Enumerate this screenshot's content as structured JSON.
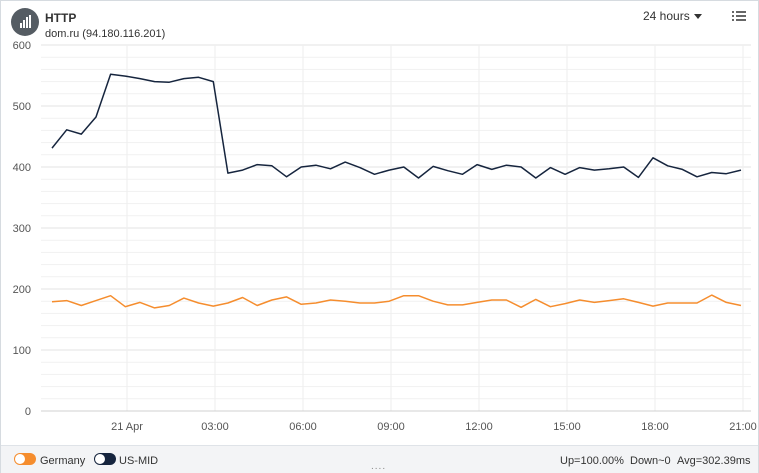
{
  "header": {
    "title": "HTTP",
    "subtitle": "dom.ru (94.180.116.201)",
    "icon": "bar-chart-icon",
    "time_range": "24 hours",
    "menu_icon": "list-menu-icon"
  },
  "legend": {
    "items": [
      {
        "label": "Germany",
        "color": "#f58d2e"
      },
      {
        "label": "US-MID",
        "color": "#16253e"
      }
    ]
  },
  "stats": {
    "up": "Up=100.00%",
    "down": "Down~0",
    "avg": "Avg=302.39ms"
  },
  "chart_data": {
    "type": "line",
    "ylim": [
      0,
      600
    ],
    "yticks": [
      "0",
      "100",
      "200",
      "300",
      "400",
      "500",
      "600"
    ],
    "xtick_labels": [
      "21 Apr",
      "03:00",
      "06:00",
      "09:00",
      "12:00",
      "15:00",
      "18:00",
      "21:00"
    ],
    "series": [
      {
        "name": "US-MID",
        "color": "#16253e",
        "values": [
          431,
          461,
          454,
          482,
          552,
          549,
          545,
          540,
          539,
          545,
          547,
          540,
          390,
          395,
          404,
          402,
          384,
          400,
          403,
          397,
          408,
          399,
          388,
          395,
          400,
          382,
          401,
          394,
          388,
          404,
          396,
          403,
          400,
          382,
          399,
          388,
          399,
          395,
          397,
          400,
          383,
          415,
          402,
          396,
          384,
          391,
          389,
          395
        ]
      },
      {
        "name": "Germany",
        "color": "#f58d2e",
        "values": [
          179,
          181,
          173,
          181,
          189,
          171,
          178,
          169,
          173,
          185,
          177,
          172,
          177,
          186,
          173,
          182,
          187,
          175,
          177,
          182,
          180,
          177,
          177,
          180,
          189,
          189,
          180,
          174,
          174,
          178,
          182,
          182,
          170,
          183,
          171,
          176,
          182,
          178,
          181,
          184,
          178,
          172,
          177,
          177,
          177,
          190,
          178,
          173
        ]
      }
    ]
  }
}
